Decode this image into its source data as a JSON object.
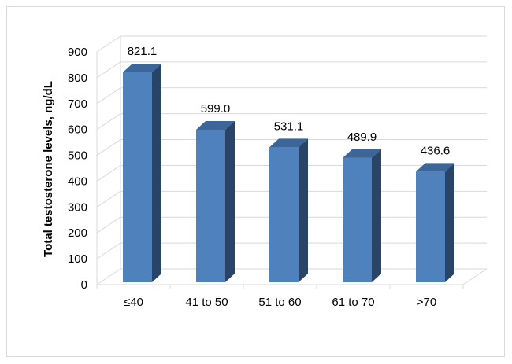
{
  "chart_data": {
    "type": "bar",
    "title": "",
    "xlabel": "",
    "ylabel": "Total testosterone levels, ng/dL",
    "categories": [
      "≤40",
      "41 to 50",
      "51 to 60",
      "61 to 70",
      ">70"
    ],
    "values": [
      821.1,
      599.0,
      531.1,
      489.9,
      436.6
    ],
    "value_labels": [
      "821.1",
      "599.0",
      "531.1",
      "489.9",
      "436.6"
    ],
    "ylim": [
      0,
      900
    ],
    "y_ticks": [
      0,
      100,
      200,
      300,
      400,
      500,
      600,
      700,
      800,
      900
    ],
    "grid": true,
    "legend": "none",
    "style": "3d-column",
    "colors": {
      "bar_front": "#4f81bd",
      "bar_top": "#3c6699",
      "bar_side": "#2a4468",
      "gridline": "#d9d9d9"
    }
  }
}
